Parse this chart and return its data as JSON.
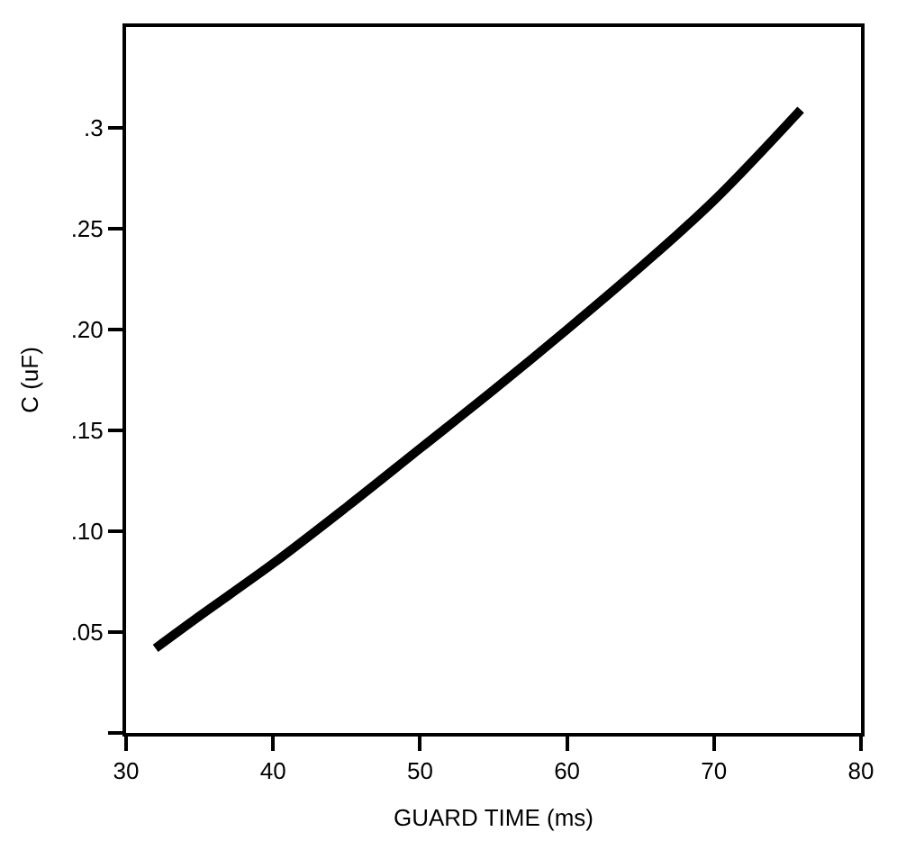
{
  "chart_data": {
    "type": "line",
    "xlabel": "GUARD TIME (ms)",
    "ylabel": "C (uF)",
    "x": [
      32,
      35,
      40,
      45,
      50,
      55,
      60,
      65,
      70,
      75.9
    ],
    "series": [
      {
        "color": "#000000",
        "values": [
          0.042,
          0.058,
          0.084,
          0.112,
          0.141,
          0.17,
          0.2,
          0.231,
          0.264,
          0.309
        ]
      }
    ],
    "xlim": [
      30,
      80
    ],
    "xticks": [
      30,
      40,
      50,
      60,
      70,
      80
    ],
    "ylim": [
      0,
      0.35
    ],
    "yticks": [
      {
        "value": 0,
        "label": null
      },
      {
        "value": 0.05,
        "label": ".05"
      },
      {
        "value": 0.1,
        "label": ".10"
      },
      {
        "value": 0.15,
        "label": ".15"
      },
      {
        "value": 0.2,
        "label": ".20"
      },
      {
        "value": 0.25,
        "label": ".25"
      },
      {
        "value": 0.3,
        "label": ".3"
      }
    ],
    "marker": "none",
    "line_style": "solid"
  }
}
